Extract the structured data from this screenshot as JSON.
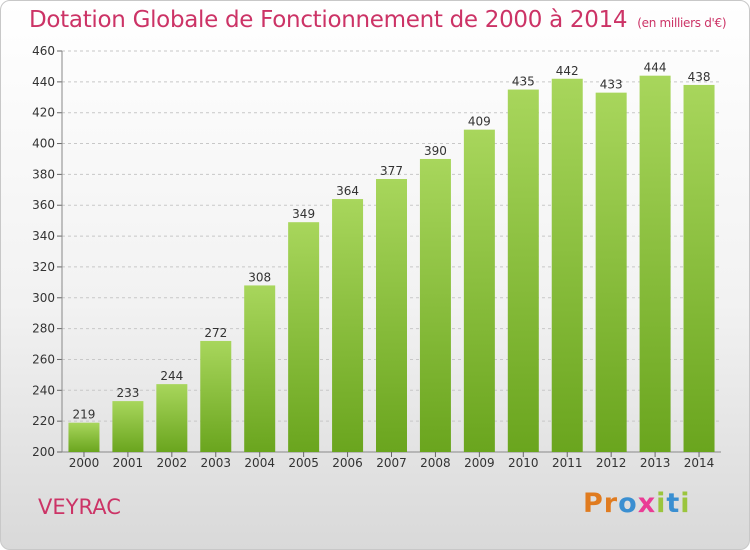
{
  "header": {
    "title": "Dotation Globale de Fonctionnement de 2000 à 2014",
    "unit": "(en milliers d'€)"
  },
  "footer": {
    "commune": "VEYRAC",
    "logo": "Proxiti",
    "logo_colors": [
      "#e07b1f",
      "#e07b1f",
      "#3a8fd1",
      "#ea3c95",
      "#9bc53d",
      "#3a8fd1",
      "#9bc53d"
    ]
  },
  "colors": {
    "bar_light": "#a8d65c",
    "bar_dark": "#6aa51e",
    "grid": "#c8c8c8",
    "text": "#333333",
    "accent": "#cc3366"
  },
  "chart_data": {
    "type": "bar",
    "title": "Dotation Globale de Fonctionnement de 2000 à 2014",
    "subtitle": "(en milliers d'€)",
    "xlabel": "",
    "ylabel": "",
    "categories": [
      "2000",
      "2001",
      "2002",
      "2003",
      "2004",
      "2005",
      "2006",
      "2007",
      "2008",
      "2009",
      "2010",
      "2011",
      "2012",
      "2013",
      "2014"
    ],
    "values": [
      219,
      233,
      244,
      272,
      308,
      349,
      364,
      377,
      390,
      409,
      435,
      442,
      433,
      444,
      438
    ],
    "ylim": [
      200,
      460
    ],
    "yticks": [
      200,
      220,
      240,
      260,
      280,
      300,
      320,
      340,
      360,
      380,
      400,
      420,
      440,
      460
    ],
    "grid": true,
    "legend": "none"
  }
}
